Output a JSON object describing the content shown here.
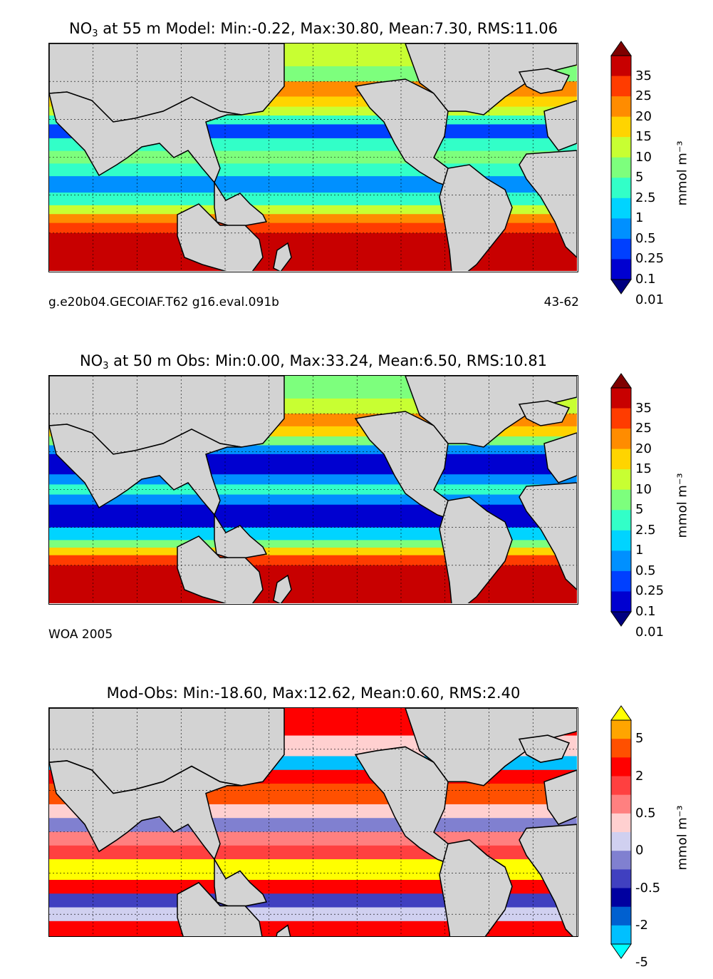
{
  "panels": [
    {
      "title_prefix": "NO",
      "title_sub": "3",
      "title_rest": " at 55 m Model: Min:-0.22, Max:30.80, Mean:7.30, RMS:11.06",
      "footer_left": "g.e20b04.GECOIAF.T62 g16.eval.091b",
      "footer_right": "43-62",
      "colorbar": {
        "labels": [
          "35",
          "25",
          "20",
          "15",
          "10",
          "5",
          "2.5",
          "1",
          "0.5",
          "0.25",
          "0.1",
          "0.01"
        ],
        "colors": [
          "#7f0000",
          "#c80000",
          "#ff3c00",
          "#ff8c00",
          "#ffd400",
          "#c8ff32",
          "#7dff7d",
          "#32ffc8",
          "#00d4ff",
          "#0090ff",
          "#0040ff",
          "#0000d0",
          "#000080"
        ],
        "unit": "mmol m⁻³"
      }
    },
    {
      "title_prefix": "NO",
      "title_sub": "3",
      "title_rest": " at 50 m Obs: Min:0.00, Max:33.24, Mean:6.50, RMS:10.81",
      "footer_left": "WOA 2005",
      "footer_right": "",
      "colorbar": {
        "labels": [
          "35",
          "25",
          "20",
          "15",
          "10",
          "5",
          "2.5",
          "1",
          "0.5",
          "0.25",
          "0.1",
          "0.01"
        ],
        "colors": [
          "#7f0000",
          "#c80000",
          "#ff3c00",
          "#ff8c00",
          "#ffd400",
          "#c8ff32",
          "#7dff7d",
          "#32ffc8",
          "#00d4ff",
          "#0090ff",
          "#0040ff",
          "#0000d0",
          "#000080"
        ],
        "unit": "mmol m⁻³"
      }
    },
    {
      "title_prefix": "",
      "title_sub": "",
      "title_rest": "Mod-Obs: Min:-18.60, Max:12.62, Mean:0.60, RMS:2.40",
      "footer_left": "",
      "footer_right": "",
      "colorbar": {
        "labels": [
          "5",
          "2",
          "0.5",
          "0",
          "-0.5",
          "-2",
          "-5"
        ],
        "colors": [
          "#ffff00",
          "#ffa500",
          "#ff5000",
          "#ff0000",
          "#ff4040",
          "#ff8080",
          "#ffd0d0",
          "#d0d0f0",
          "#8080d0",
          "#4040c0",
          "#0000a0",
          "#0060d0",
          "#00c0ff",
          "#00ffff"
        ],
        "unit": "mmol m⁻³"
      }
    }
  ],
  "chart_data": [
    {
      "type": "heatmap",
      "title": "NO3 at 55 m Model: Min:-0.22, Max:30.80, Mean:7.30, RMS:11.06",
      "stats": {
        "min": -0.22,
        "max": 30.8,
        "mean": 7.3,
        "rms": 11.06
      },
      "colorbar_levels": [
        0.01,
        0.1,
        0.25,
        0.5,
        1,
        2.5,
        5,
        10,
        15,
        20,
        25,
        35
      ],
      "unit": "mmol m⁻³",
      "annotations": [
        "g.e20b04.GECOIAF.T62 g16.eval.091b",
        "43-62"
      ]
    },
    {
      "type": "heatmap",
      "title": "NO3 at 50 m Obs: Min:0.00, Max:33.24, Mean:6.50, RMS:10.81",
      "stats": {
        "min": 0.0,
        "max": 33.24,
        "mean": 6.5,
        "rms": 10.81
      },
      "colorbar_levels": [
        0.01,
        0.1,
        0.25,
        0.5,
        1,
        2.5,
        5,
        10,
        15,
        20,
        25,
        35
      ],
      "unit": "mmol m⁻³",
      "annotations": [
        "WOA 2005"
      ]
    },
    {
      "type": "heatmap",
      "title": "Mod-Obs: Min:-18.60, Max:12.62, Mean:0.60, RMS:2.40",
      "stats": {
        "min": -18.6,
        "max": 12.62,
        "mean": 0.6,
        "rms": 2.4
      },
      "colorbar_levels": [
        -5,
        -2,
        -0.5,
        0,
        0.5,
        2,
        5
      ],
      "unit": "mmol m⁻³"
    }
  ]
}
